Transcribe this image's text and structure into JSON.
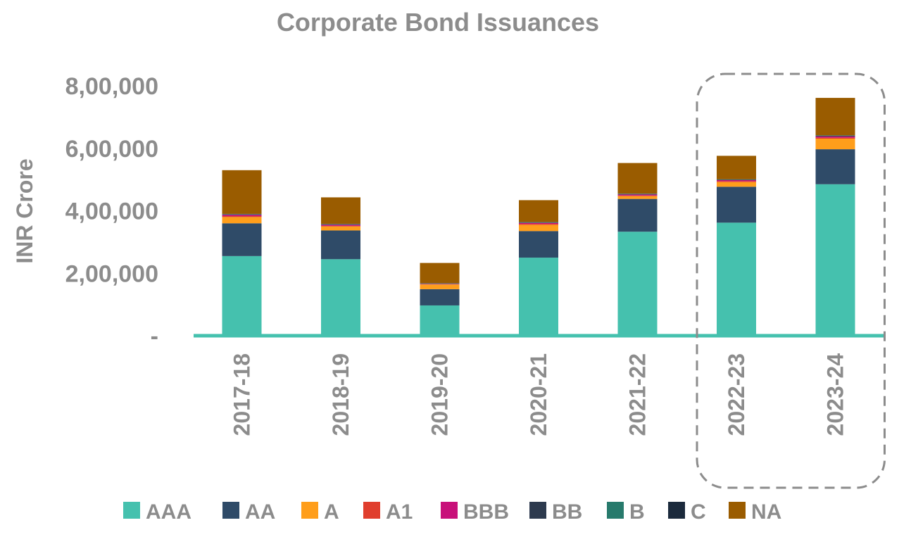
{
  "chart_data": {
    "type": "bar",
    "stacked": true,
    "title": "Corporate Bond Issuances",
    "xlabel": "",
    "ylabel": "INR Crore",
    "ylim": [
      0,
      800000
    ],
    "yticks": [
      0,
      200000,
      400000,
      600000,
      800000
    ],
    "ytick_labels": [
      "-",
      "2,00,000",
      "4,00,000",
      "6,00,000",
      "8,00,000"
    ],
    "categories": [
      "2017-18",
      "2018-19",
      "2019-20",
      "2020-21",
      "2021-22",
      "2022-23",
      "2023-24"
    ],
    "series": [
      {
        "name": "AAA",
        "color": "#45c1ae",
        "values": [
          255000,
          245000,
          97000,
          250000,
          333000,
          362000,
          485000
        ]
      },
      {
        "name": "AA",
        "color": "#2f4b68",
        "values": [
          105000,
          92000,
          52000,
          85000,
          105000,
          115000,
          112000
        ]
      },
      {
        "name": "A",
        "color": "#ff9e1b",
        "values": [
          20000,
          13000,
          15000,
          20000,
          9000,
          15000,
          34000
        ]
      },
      {
        "name": "A1",
        "color": "#e03e2d",
        "values": [
          3000,
          2000,
          1000,
          3000,
          2000,
          3000,
          3000
        ]
      },
      {
        "name": "BBB",
        "color": "#c8107a",
        "values": [
          4000,
          3000,
          1000,
          3000,
          3000,
          3000,
          4000
        ]
      },
      {
        "name": "BB",
        "color": "#2d3a4e",
        "values": [
          1500,
          1500,
          1000,
          1500,
          1500,
          1500,
          2000
        ]
      },
      {
        "name": "B",
        "color": "#277a6c",
        "values": [
          1000,
          1000,
          500,
          1000,
          1000,
          1000,
          1000
        ]
      },
      {
        "name": "C",
        "color": "#1b2a3c",
        "values": [
          500,
          500,
          500,
          500,
          500,
          500,
          500
        ]
      },
      {
        "name": "NA",
        "color": "#9a5c00",
        "values": [
          140000,
          85000,
          65000,
          70000,
          98000,
          75000,
          120000
        ]
      }
    ],
    "highlight": {
      "categories": [
        "2022-23",
        "2023-24"
      ],
      "style": "dashed rounded box",
      "color": "#8c8c8c"
    },
    "axis_color": "#45c1ae",
    "grid": false,
    "legend": "bottom"
  }
}
